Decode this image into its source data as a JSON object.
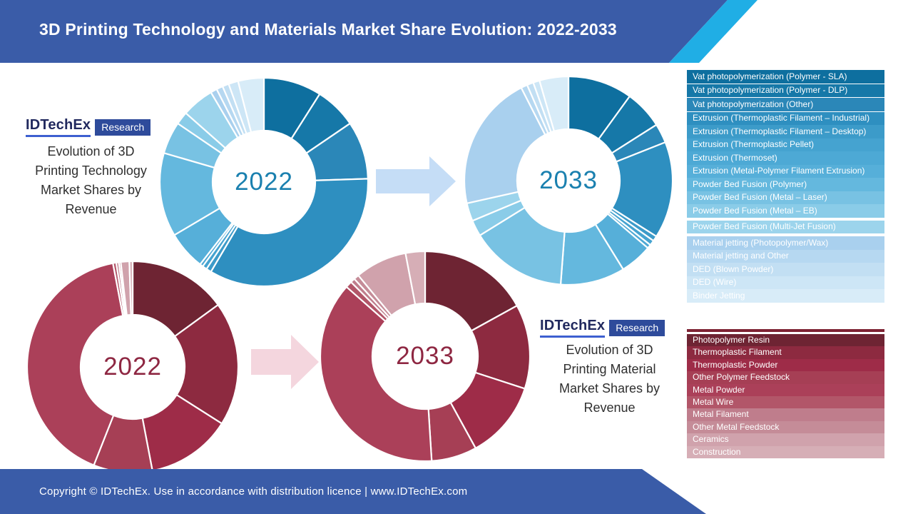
{
  "header": {
    "title": "3D Printing Technology and Materials Market Share Evolution: 2022-2033"
  },
  "logos": {
    "brand": "IDTechEx",
    "research": "Research"
  },
  "sections": {
    "technology": {
      "caption": "Evolution of 3D\nPrinting Technology\nMarket Shares by\nRevenue"
    },
    "materials": {
      "caption": "Evolution of 3D\nPrinting Material\nMarket Shares by\nRevenue"
    }
  },
  "footer": {
    "text": "Copyright © IDTechEx. Use in accordance with distribution licence  |  www.IDTechEx.com"
  },
  "colors": {
    "header_bg": "#3a5ca8",
    "header_accent": "#20aee5",
    "footer_bg": "#3a5ca8",
    "research_bg": "#2e4b9b",
    "logo_navy": "#21295e",
    "logo_underline": "#3d5fd0",
    "red_legend_topbar": "#7e2334",
    "arrow_blue": "#c5ddf6",
    "arrow_pink": "#f4d6de"
  },
  "chart_data": [
    {
      "id": "technology-2022",
      "type": "pie",
      "subtype": "donut",
      "title": "Evolution of 3D Printing Technology Market Shares by Revenue",
      "center_label": "2022",
      "label_color": "#1a80af",
      "legend_position": "right",
      "units": "% of market revenue (estimated from chart)",
      "categories": [
        "Vat photopolymerization (Polymer - SLA)",
        "Vat photopolymerization (Polymer - DLP)",
        "Vat photopolymerization (Other)",
        "Extrusion (Thermoplastic Filament – Industrial)",
        "Extrusion (Thermoplastic Filament – Desktop)",
        "Extrusion (Thermoplastic Pellet)",
        "Extrusion (Thermoset)",
        "Extrusion (Metal-Polymer Filament Extrusion)",
        "Powder Bed Fusion (Polymer)",
        "Powder Bed Fusion  (Metal – Laser)",
        "Powder Bed Fusion  (Metal – EB)",
        "Powder Bed Fusion  (Multi-Jet Fusion)",
        "Material jetting (Photopolymer/Wax)",
        "Material jetting and Other",
        "DED (Blown Powder)",
        "DED (Wire)",
        "Binder Jetting"
      ],
      "values": [
        9,
        6.5,
        9,
        34,
        0.8,
        0.7,
        0.5,
        6,
        13,
        5,
        2,
        5,
        1,
        1,
        1,
        1.5,
        4
      ],
      "colors": [
        "#0e6f9f",
        "#1678a8",
        "#2b87b8",
        "#2e8fc0",
        "#3c9bc9",
        "#45a3d0",
        "#4da9d5",
        "#56afd9",
        "#64b8de",
        "#78c2e3",
        "#8acce8",
        "#9cd4ec",
        "#a9d0ee",
        "#b6d8f1",
        "#c2dff3",
        "#cde6f6",
        "#d8ecf8"
      ]
    },
    {
      "id": "technology-2033",
      "type": "pie",
      "subtype": "donut",
      "title": "Evolution of 3D Printing Technology Market Shares by Revenue",
      "center_label": "2033",
      "label_color": "#1a80af",
      "legend_position": "right",
      "units": "% of market revenue (estimated from chart)",
      "categories": [
        "Vat photopolymerization (Polymer - SLA)",
        "Vat photopolymerization (Polymer - DLP)",
        "Vat photopolymerization (Other)",
        "Extrusion (Thermoplastic Filament – Industrial)",
        "Extrusion (Thermoplastic Filament – Desktop)",
        "Extrusion (Thermoplastic Pellet)",
        "Extrusion (Thermoset)",
        "Extrusion (Metal-Polymer Filament Extrusion)",
        "Powder Bed Fusion (Polymer)",
        "Powder Bed Fusion  (Metal – Laser)",
        "Powder Bed Fusion  (Metal – EB)",
        "Powder Bed Fusion  (Multi-Jet Fusion)",
        "Material jetting (Photopolymer/Wax)",
        "Material jetting and Other",
        "DED (Blown Powder)",
        "DED (Wire)",
        "Binder Jetting"
      ],
      "values": [
        10,
        6,
        3,
        15,
        0.8,
        0.8,
        0.6,
        5,
        10,
        15,
        2.5,
        2.8,
        21,
        1,
        1,
        1,
        4.5
      ],
      "colors": [
        "#0e6f9f",
        "#1678a8",
        "#2b87b8",
        "#2e8fc0",
        "#3c9bc9",
        "#45a3d0",
        "#4da9d5",
        "#56afd9",
        "#64b8de",
        "#78c2e3",
        "#8acce8",
        "#9cd4ec",
        "#a9d0ee",
        "#b6d8f1",
        "#c2dff3",
        "#cde6f6",
        "#d8ecf8"
      ]
    },
    {
      "id": "materials-2022",
      "type": "pie",
      "subtype": "donut",
      "title": "Evolution of 3D Printing Material Market Shares by Revenue",
      "center_label": "2022",
      "label_color": "#8e2742",
      "legend_position": "right",
      "units": "% of market revenue (estimated from chart)",
      "categories": [
        "Photopolymer Resin",
        "Thermoplastic Filament",
        "Thermoplastic Powder",
        "Other Polymer Feedstock",
        "Metal Powder",
        "Metal Wire",
        "Metal Filament",
        "Other Metal Feedstock",
        "Ceramics",
        "Construction"
      ],
      "values": [
        15,
        19,
        13,
        9,
        41,
        0.5,
        0.4,
        0.3,
        1.3,
        0.5
      ],
      "colors": [
        "#6e2433",
        "#8d2a40",
        "#9e2c48",
        "#a63f55",
        "#ab4059",
        "#b25669",
        "#bf7d8c",
        "#c58c98",
        "#d0a2ac",
        "#d6aeb6"
      ]
    },
    {
      "id": "materials-2033",
      "type": "pie",
      "subtype": "donut",
      "title": "Evolution of 3D Printing Material Market Shares by Revenue",
      "center_label": "2033",
      "label_color": "#8e2742",
      "legend_position": "right",
      "units": "% of market revenue (estimated from chart)",
      "categories": [
        "Photopolymer Resin",
        "Thermoplastic Filament",
        "Thermoplastic Powder",
        "Other Polymer Feedstock",
        "Metal Powder",
        "Metal Wire",
        "Metal Filament",
        "Other Metal Feedstock",
        "Ceramics",
        "Construction"
      ],
      "values": [
        17,
        13,
        12,
        7,
        37.5,
        1,
        0.7,
        0.8,
        8,
        3
      ],
      "colors": [
        "#6e2433",
        "#8d2a40",
        "#9e2c48",
        "#a63f55",
        "#ab4059",
        "#b25669",
        "#bf7d8c",
        "#c58c98",
        "#d0a2ac",
        "#d6aeb6"
      ]
    }
  ]
}
